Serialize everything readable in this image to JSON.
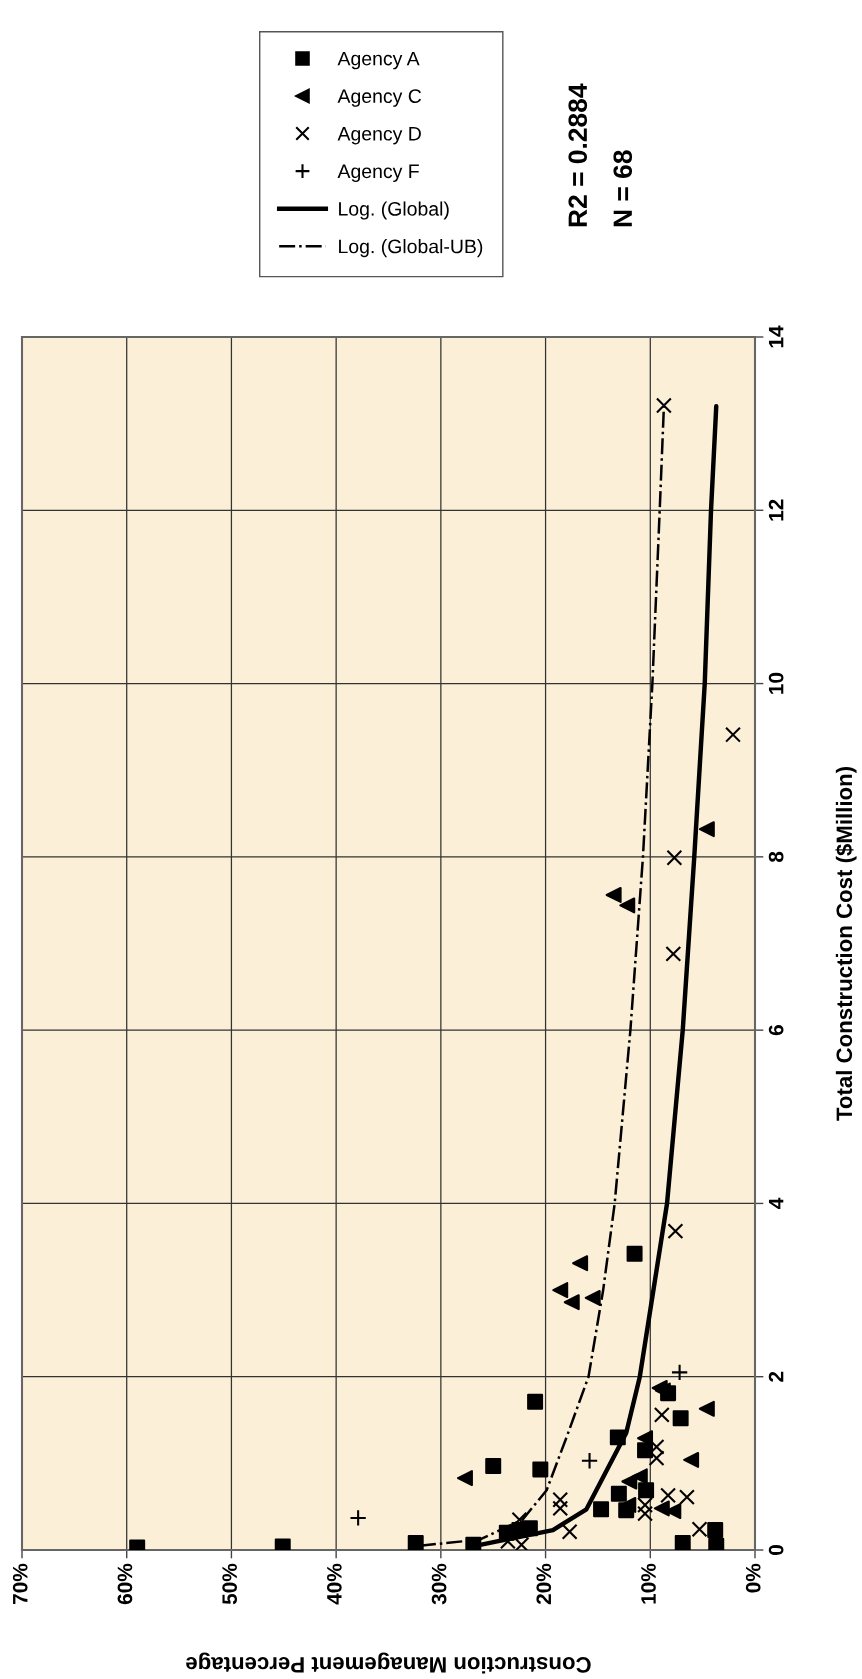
{
  "chart_data": {
    "type": "scatter",
    "xlabel": "Construction Management Percentage",
    "ylabel": "Total Construction Cost ($Million)",
    "ylim": [
      0,
      14
    ],
    "yticks": [
      0,
      2,
      4,
      6,
      8,
      10,
      12,
      14
    ],
    "xlim": [
      70,
      0
    ],
    "xticks": [
      {
        "value": 70,
        "label": "70%"
      },
      {
        "value": 60,
        "label": "60%"
      },
      {
        "value": 50,
        "label": "50%"
      },
      {
        "value": 40,
        "label": "40%"
      },
      {
        "value": 30,
        "label": "30%"
      },
      {
        "value": 20,
        "label": "20%"
      },
      {
        "value": 10,
        "label": "10%"
      },
      {
        "value": 0,
        "label": "0%"
      }
    ],
    "grid": true,
    "legend": "top",
    "annotations": [
      "R2 = 0.2884",
      "N = 68"
    ],
    "series": [
      {
        "name": "Agency A",
        "color": "#000000",
        "marker": "square",
        "values": [
          1.71,
          0.97,
          0.93,
          1.3,
          1.15,
          1.52,
          1.81,
          0.65,
          0.69,
          0.47,
          0.46,
          0.08,
          0.06,
          0.2,
          0.23,
          0.25,
          0.08,
          0.23,
          0.05,
          3.42,
          0.03,
          0.04
        ],
        "x": [
          21.0,
          25.0,
          20.5,
          13.1,
          10.5,
          7.1,
          8.3,
          13.0,
          10.4,
          14.7,
          12.3,
          32.4,
          26.9,
          23.7,
          22.5,
          21.5,
          6.9,
          3.8,
          3.7,
          11.5,
          59.0,
          45.1
        ]
      },
      {
        "name": "Agency C",
        "color": "#000000",
        "marker": "triangle",
        "values": [
          0.83,
          1.87,
          1.84,
          1.63,
          1.04,
          1.29,
          0.79,
          0.85,
          0.52,
          0.48,
          0.45,
          3.31,
          3.0,
          2.86,
          2.91,
          7.56,
          7.44,
          8.32
        ],
        "x": [
          27.7,
          9.1,
          8.8,
          4.6,
          6.1,
          10.5,
          12.0,
          11.0,
          12.1,
          8.9,
          7.8,
          16.7,
          18.6,
          17.5,
          15.5,
          13.5,
          12.2,
          4.6
        ]
      },
      {
        "name": "Agency D",
        "color": "#000000",
        "marker": "cross",
        "values": [
          13.21,
          9.41,
          7.99,
          6.88,
          3.68,
          1.56,
          1.19,
          1.06,
          0.58,
          0.48,
          0.21,
          0.63,
          0.61,
          0.52,
          0.42,
          0.24,
          0.35,
          0.1,
          0.06
        ],
        "x": [
          8.7,
          2.1,
          7.7,
          7.8,
          7.6,
          8.9,
          9.4,
          9.4,
          18.6,
          18.6,
          17.7,
          8.3,
          6.5,
          10.5,
          10.5,
          5.3,
          22.5,
          23.6,
          22.3
        ]
      },
      {
        "name": "Agency F",
        "color": "#000000",
        "marker": "plus",
        "values": [
          0.37,
          2.05,
          1.03
        ],
        "x": [
          37.9,
          7.2,
          15.8
        ]
      },
      {
        "name": "Log. (Global)",
        "type": "line",
        "color": "#000000",
        "marker": "none",
        "line_style": "solid",
        "values": [
          0.05,
          0.23,
          0.47,
          1.35,
          2,
          4,
          6,
          8,
          10,
          12,
          13.2
        ],
        "x": [
          26.6,
          19.3,
          16.1,
          12.3,
          11.0,
          8.4,
          6.9,
          5.8,
          4.8,
          4.2,
          3.7
        ]
      },
      {
        "name": "Log. (Global-UB)",
        "type": "line",
        "color": "#000000",
        "marker": "none",
        "line_style": "dashdot",
        "values": [
          0.05,
          0.12,
          0.35,
          0.69,
          1.3,
          2,
          3,
          4,
          6,
          8,
          10,
          12,
          13.2
        ],
        "x": [
          32.0,
          26.3,
          22.2,
          19.9,
          18.0,
          15.9,
          14.5,
          13.4,
          11.9,
          10.7,
          9.8,
          9.1,
          8.7
        ]
      }
    ]
  }
}
